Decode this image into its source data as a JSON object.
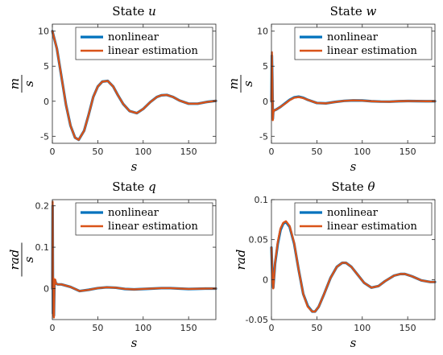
{
  "chart_data": [
    {
      "type": "line",
      "title_prefix": "State ",
      "title_symbol": "u",
      "xlabel": "s",
      "ylabel": {
        "numerator": "m",
        "denominator": "s"
      },
      "xlim": [
        0,
        180
      ],
      "ylim": [
        -6,
        11
      ],
      "xticks": [
        0,
        50,
        100,
        150
      ],
      "xtick_labels": [
        "0",
        "50",
        "100",
        "150"
      ],
      "yticks": [
        -5,
        0,
        5,
        10
      ],
      "ytick_labels": [
        "-5",
        "0",
        "5",
        "10"
      ],
      "legend": [
        "nonlinear",
        "linear estimation"
      ],
      "legend_position": "top-right",
      "series": [
        {
          "name": "nonlinear",
          "color": "#0072BD",
          "x": [
            0,
            5,
            10,
            15,
            20,
            25,
            29,
            35,
            40,
            45,
            50,
            55,
            61,
            67,
            72,
            78,
            85,
            93,
            100,
            108,
            115,
            120,
            126,
            133,
            140,
            150,
            160,
            170,
            180
          ],
          "y": [
            10,
            7.5,
            3.5,
            -0.5,
            -3.5,
            -5.2,
            -5.5,
            -4.2,
            -1.9,
            0.6,
            2.1,
            2.8,
            2.9,
            2.1,
            0.9,
            -0.4,
            -1.4,
            -1.7,
            -1.1,
            -0.1,
            0.6,
            0.85,
            0.9,
            0.6,
            0.1,
            -0.35,
            -0.35,
            -0.1,
            0.05
          ]
        },
        {
          "name": "linear estimation",
          "color": "#D95319",
          "x": [
            0,
            5,
            10,
            15,
            20,
            25,
            29,
            35,
            40,
            45,
            50,
            55,
            61,
            67,
            72,
            78,
            85,
            93,
            100,
            108,
            115,
            120,
            126,
            133,
            140,
            150,
            160,
            170,
            180
          ],
          "y": [
            10,
            7.5,
            3.5,
            -0.5,
            -3.5,
            -5.2,
            -5.5,
            -4.2,
            -1.9,
            0.6,
            2.1,
            2.8,
            2.9,
            2.1,
            0.9,
            -0.4,
            -1.4,
            -1.7,
            -1.1,
            -0.1,
            0.6,
            0.85,
            0.9,
            0.6,
            0.1,
            -0.35,
            -0.35,
            -0.1,
            0.05
          ]
        }
      ]
    },
    {
      "type": "line",
      "title_prefix": "State ",
      "title_symbol": "w",
      "xlabel": "s",
      "ylabel": {
        "numerator": "m",
        "denominator": "s"
      },
      "xlim": [
        0,
        180
      ],
      "ylim": [
        -6,
        11
      ],
      "xticks": [
        0,
        50,
        100,
        150
      ],
      "xtick_labels": [
        "0",
        "50",
        "100",
        "150"
      ],
      "yticks": [
        -5,
        0,
        5,
        10
      ],
      "ytick_labels": [
        "-5",
        "0",
        "5",
        "10"
      ],
      "legend": [
        "nonlinear",
        "linear estimation"
      ],
      "legend_position": "top-right",
      "series": [
        {
          "name": "nonlinear",
          "color": "#0072BD",
          "x": [
            0,
            0.5,
            1,
            1.5,
            2,
            3,
            5,
            10,
            15,
            20,
            25,
            30,
            35,
            40,
            50,
            60,
            70,
            80,
            90,
            100,
            110,
            120,
            130,
            140,
            150,
            160,
            170,
            180
          ],
          "y": [
            0,
            6.5,
            3,
            -2.5,
            -1.5,
            -1.3,
            -1.2,
            -0.8,
            -0.3,
            0.2,
            0.55,
            0.65,
            0.5,
            0.2,
            -0.25,
            -0.3,
            -0.1,
            0.05,
            0.12,
            0.1,
            0,
            -0.05,
            -0.06,
            0,
            0.03,
            0.02,
            0,
            0
          ]
        },
        {
          "name": "linear estimation",
          "color": "#D95319",
          "x": [
            0,
            0.5,
            1,
            1.5,
            2,
            3,
            5,
            10,
            15,
            20,
            25,
            30,
            35,
            40,
            50,
            60,
            70,
            80,
            90,
            100,
            110,
            120,
            130,
            140,
            150,
            160,
            170,
            180
          ],
          "y": [
            0,
            7,
            3,
            -2.7,
            -1.6,
            -1.3,
            -1.2,
            -0.8,
            -0.35,
            0.15,
            0.5,
            0.6,
            0.45,
            0.2,
            -0.25,
            -0.3,
            -0.1,
            0.05,
            0.12,
            0.1,
            0,
            -0.05,
            -0.06,
            0,
            0.03,
            0.02,
            0,
            0
          ]
        }
      ]
    },
    {
      "type": "line",
      "title_prefix": "State ",
      "title_symbol": "q",
      "xlabel": "s",
      "ylabel": {
        "numerator": "rad",
        "denominator": "s"
      },
      "xlim": [
        0,
        180
      ],
      "ylim": [
        -0.075,
        0.215
      ],
      "xticks": [
        0,
        50,
        100,
        150
      ],
      "xtick_labels": [
        "0",
        "50",
        "100",
        "150"
      ],
      "yticks": [
        0,
        0.1,
        0.2
      ],
      "ytick_labels": [
        "0",
        "0.1",
        "0.2"
      ],
      "legend": [
        "nonlinear",
        "linear estimation"
      ],
      "legend_position": "top-right",
      "series": [
        {
          "name": "nonlinear",
          "color": "#0072BD",
          "x": [
            0,
            0.3,
            0.7,
            1.2,
            1.7,
            2.3,
            3,
            4,
            6,
            10,
            20,
            30,
            40,
            50,
            60,
            70,
            80,
            90,
            100,
            110,
            120,
            130,
            140,
            150,
            160,
            170,
            180
          ],
          "y": [
            0,
            0.2,
            -0.06,
            0.02,
            -0.065,
            0.015,
            0.02,
            0.012,
            0.01,
            0.01,
            0.004,
            -0.006,
            -0.003,
            0.001,
            0.003,
            0.002,
            -0.001,
            -0.002,
            -0.001,
            0,
            0.001,
            0.001,
            0,
            -0.001,
            -0.0005,
            0,
            0
          ]
        },
        {
          "name": "linear estimation",
          "color": "#D95319",
          "x": [
            0,
            0.3,
            0.7,
            1.2,
            1.7,
            2.3,
            3,
            4,
            6,
            10,
            20,
            30,
            40,
            50,
            60,
            70,
            80,
            90,
            100,
            110,
            120,
            130,
            140,
            150,
            160,
            170,
            180
          ],
          "y": [
            0,
            0.21,
            -0.065,
            0.025,
            -0.07,
            0.015,
            0.022,
            0.012,
            0.01,
            0.01,
            0.004,
            -0.006,
            -0.003,
            0.001,
            0.003,
            0.002,
            -0.001,
            -0.002,
            -0.001,
            0,
            0.001,
            0.001,
            0,
            -0.001,
            -0.0005,
            0,
            0
          ]
        }
      ]
    },
    {
      "type": "line",
      "title_prefix": "State ",
      "title_symbol": "θ",
      "xlabel": "s",
      "ylabel": {
        "numerator": "rad",
        "denominator": ""
      },
      "xlim": [
        0,
        180
      ],
      "ylim": [
        -0.05,
        0.1
      ],
      "xticks": [
        0,
        50,
        100,
        150
      ],
      "xtick_labels": [
        "0",
        "50",
        "100",
        "150"
      ],
      "yticks": [
        -0.05,
        0,
        0.05,
        0.1
      ],
      "ytick_labels": [
        "-0.05",
        "0",
        "0.05",
        "0.1"
      ],
      "legend": [
        "nonlinear",
        "linear estimation"
      ],
      "legend_position": "top-right",
      "series": [
        {
          "name": "nonlinear",
          "color": "#0072BD",
          "x": [
            0,
            1,
            2,
            4,
            7,
            10,
            13,
            16,
            20,
            25,
            30,
            35,
            40,
            45,
            48,
            52,
            58,
            65,
            72,
            78,
            82,
            88,
            95,
            102,
            110,
            118,
            125,
            135,
            142,
            147,
            155,
            165,
            175,
            180
          ],
          "y": [
            0.04,
            0.005,
            -0.01,
            0.02,
            0.045,
            0.062,
            0.07,
            0.072,
            0.066,
            0.045,
            0.012,
            -0.018,
            -0.033,
            -0.04,
            -0.04,
            -0.034,
            -0.018,
            0.002,
            0.016,
            0.021,
            0.021,
            0.016,
            0.006,
            -0.004,
            -0.01,
            -0.008,
            -0.002,
            0.005,
            0.007,
            0.007,
            0.004,
            -0.001,
            -0.003,
            -0.003
          ]
        },
        {
          "name": "linear estimation",
          "color": "#D95319",
          "x": [
            0,
            1,
            2,
            4,
            7,
            10,
            13,
            16,
            20,
            25,
            30,
            35,
            40,
            45,
            48,
            52,
            58,
            65,
            72,
            78,
            82,
            88,
            95,
            102,
            110,
            118,
            125,
            135,
            142,
            147,
            155,
            165,
            175,
            180
          ],
          "y": [
            0.04,
            0.005,
            -0.011,
            0.021,
            0.047,
            0.064,
            0.071,
            0.073,
            0.067,
            0.046,
            0.012,
            -0.018,
            -0.034,
            -0.04,
            -0.04,
            -0.034,
            -0.018,
            0.002,
            0.016,
            0.021,
            0.021,
            0.016,
            0.006,
            -0.004,
            -0.01,
            -0.008,
            -0.002,
            0.005,
            0.007,
            0.007,
            0.004,
            -0.001,
            -0.003,
            -0.003
          ]
        }
      ]
    }
  ]
}
